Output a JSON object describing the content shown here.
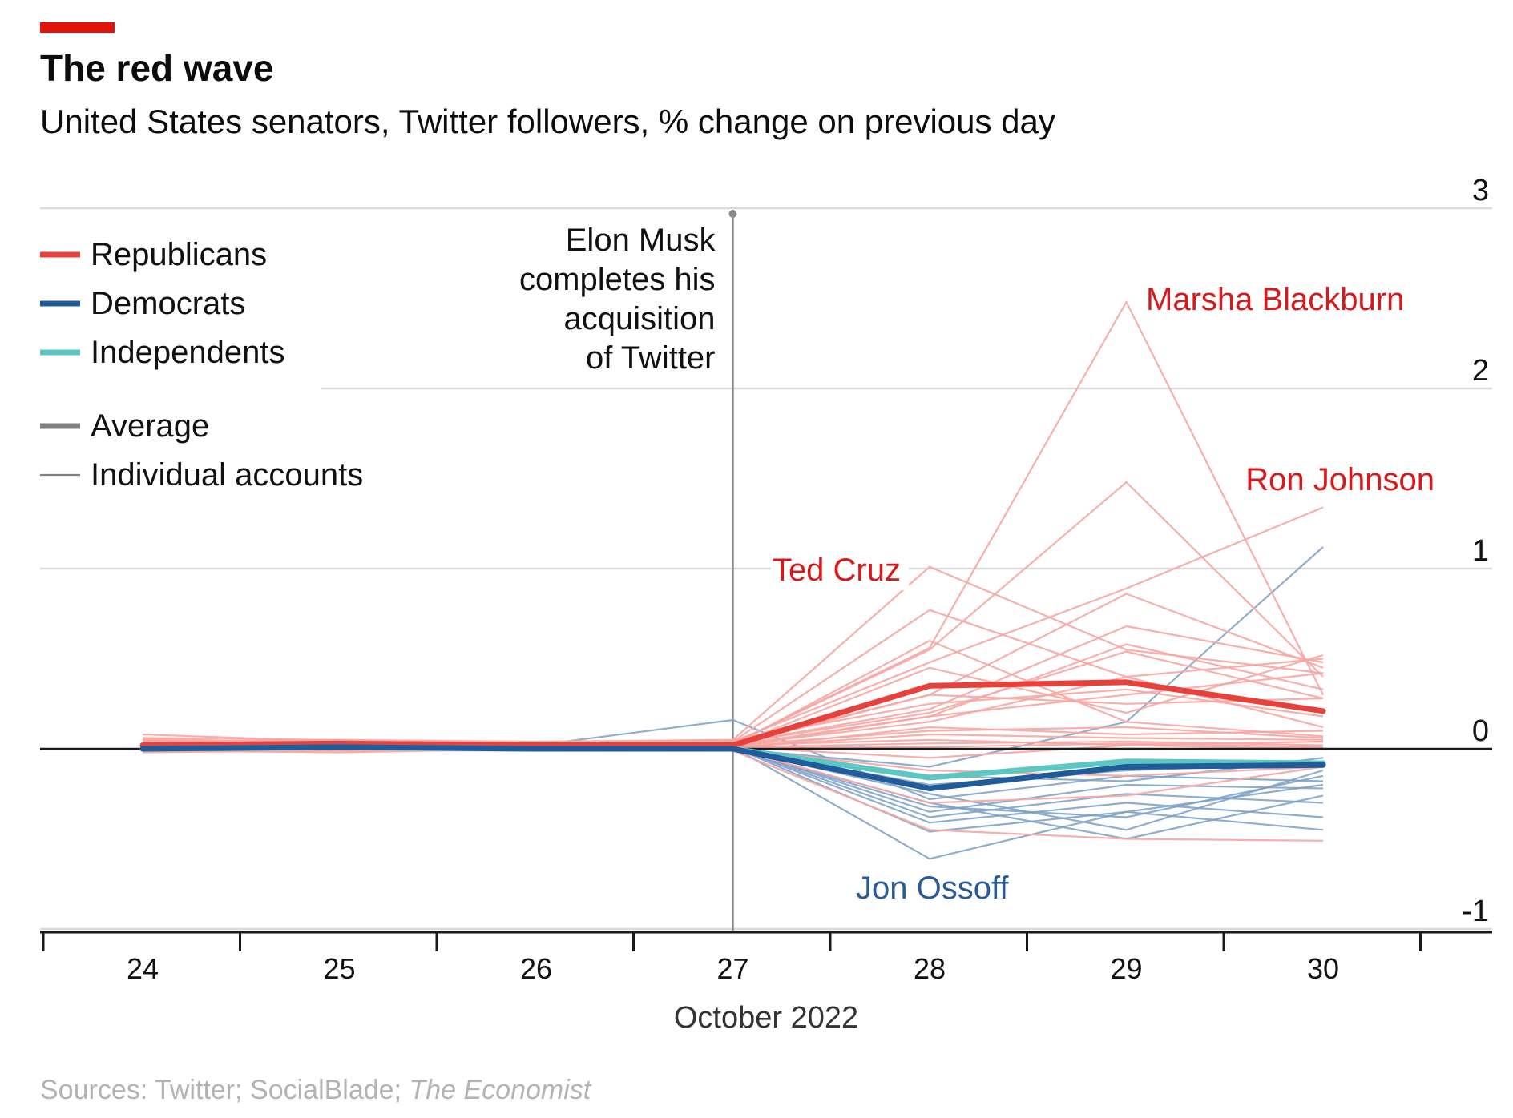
{
  "header": {
    "title": "The red wave",
    "subtitle": "United States senators, Twitter followers, % change on previous day"
  },
  "footer": {
    "sources_label": "Sources: Twitter; SocialBlade;",
    "sources_publication": "The Economist"
  },
  "colors": {
    "accent": "#e3120b",
    "republicans": "#e8413b",
    "republicans_light": "#f7a6a3",
    "democrats": "#1f5c99",
    "democrats_light": "#7b9fc7",
    "independents": "#5cc6c3",
    "average": "#808080",
    "label_red": "#d7191c",
    "label_blue": "#2a5b92"
  },
  "chart_data": {
    "type": "line",
    "title": "The red wave",
    "subtitle": "United States senators, Twitter followers, % change on previous day",
    "x": [
      24,
      25,
      26,
      27,
      28,
      29,
      30
    ],
    "x_tick_labels": [
      "24",
      "25",
      "26",
      "27",
      "28",
      "29",
      "30"
    ],
    "xlabel": "October 2022",
    "y_ticks": [
      3,
      2,
      1,
      0,
      -1
    ],
    "y_tick_labels": [
      "3",
      "2",
      "1",
      "0",
      "-1"
    ],
    "ylim": [
      -1,
      3
    ],
    "grid": true,
    "legend": {
      "placement": "top-left",
      "entries": [
        {
          "label": "Republicans",
          "color": "#e8413b",
          "style": "thick"
        },
        {
          "label": "Democrats",
          "color": "#1f5c99",
          "style": "thick"
        },
        {
          "label": "Independents",
          "color": "#5cc6c3",
          "style": "thick"
        },
        {
          "label": "Average",
          "color": "#808080",
          "style": "thick"
        },
        {
          "label": "Individual accounts",
          "color": "#808080",
          "style": "thin"
        }
      ]
    },
    "event": {
      "x": 27,
      "label_lines": [
        "Elon Musk",
        "completes his",
        "acquisition",
        "of Twitter"
      ]
    },
    "averages": [
      {
        "name": "Republicans",
        "color": "#e8413b",
        "values": [
          0.02,
          0.03,
          0.02,
          0.02,
          0.35,
          0.37,
          0.21
        ]
      },
      {
        "name": "Independents",
        "color": "#5cc6c3",
        "values": [
          0.0,
          0.01,
          0.0,
          0.0,
          -0.16,
          -0.07,
          -0.08
        ]
      },
      {
        "name": "Democrats",
        "color": "#1f5c99",
        "values": [
          0.0,
          0.01,
          0.0,
          0.0,
          -0.22,
          -0.1,
          -0.09
        ]
      }
    ],
    "individual_accounts": [
      {
        "party": "Republicans",
        "label": "Marsha Blackburn",
        "values": [
          0.05,
          0.03,
          0.02,
          0.03,
          0.56,
          2.48,
          0.3
        ]
      },
      {
        "party": "Republicans",
        "label": "Ron Johnson",
        "values": [
          0.04,
          0.04,
          0.03,
          0.04,
          0.48,
          0.89,
          1.34
        ]
      },
      {
        "party": "Republicans",
        "label": "Ted Cruz",
        "values": [
          0.06,
          0.05,
          0.04,
          0.05,
          1.01,
          0.55,
          0.42
        ]
      },
      {
        "party": "Democrats",
        "label": "Jon Ossoff",
        "values": [
          0.01,
          0.0,
          0.0,
          0.01,
          -0.61,
          -0.35,
          -0.45
        ]
      },
      {
        "party": "Republicans",
        "values": [
          0.08,
          0.04,
          0.03,
          0.04,
          0.77,
          0.4,
          0.5
        ]
      },
      {
        "party": "Republicans",
        "values": [
          0.04,
          0.05,
          0.03,
          0.03,
          0.55,
          1.48,
          0.4
        ]
      },
      {
        "party": "Republicans",
        "values": [
          0.03,
          0.02,
          0.03,
          0.02,
          0.3,
          0.86,
          0.45
        ]
      },
      {
        "party": "Republicans",
        "values": [
          0.02,
          0.03,
          0.02,
          0.03,
          0.22,
          0.68,
          0.48
        ]
      },
      {
        "party": "Republicans",
        "values": [
          0.03,
          0.02,
          0.02,
          0.02,
          0.45,
          0.2,
          0.52
        ]
      },
      {
        "party": "Republicans",
        "values": [
          0.02,
          0.02,
          0.01,
          0.02,
          0.6,
          0.15,
          0.07
        ]
      },
      {
        "party": "Republicans",
        "values": [
          0.05,
          0.03,
          0.02,
          0.03,
          0.2,
          0.54,
          0.28
        ]
      },
      {
        "party": "Republicans",
        "values": [
          0.01,
          0.02,
          0.02,
          0.01,
          0.18,
          0.3,
          0.42
        ]
      },
      {
        "party": "Republicans",
        "values": [
          0.02,
          0.01,
          0.01,
          0.02,
          0.15,
          0.4,
          0.12
        ]
      },
      {
        "party": "Republicans",
        "values": [
          0.03,
          0.03,
          0.02,
          0.03,
          0.3,
          0.25,
          0.28
        ]
      },
      {
        "party": "Republicans",
        "values": [
          0.04,
          0.02,
          0.02,
          0.02,
          0.1,
          0.12,
          0.06
        ]
      },
      {
        "party": "Republicans",
        "values": [
          0.01,
          0.01,
          0.01,
          0.01,
          0.08,
          0.06,
          0.05
        ]
      },
      {
        "party": "Republicans",
        "values": [
          0.02,
          0.02,
          0.02,
          0.02,
          0.05,
          0.02,
          0.04
        ]
      },
      {
        "party": "Republicans",
        "values": [
          0.01,
          0.02,
          0.01,
          0.01,
          0.03,
          0.04,
          0.02
        ]
      },
      {
        "party": "Republicans",
        "values": [
          0.02,
          0.01,
          0.02,
          0.01,
          0.01,
          0.03,
          0.01
        ]
      },
      {
        "party": "Republicans",
        "values": [
          0.0,
          0.01,
          0.01,
          0.0,
          0.12,
          0.08,
          0.1
        ]
      },
      {
        "party": "Republicans",
        "values": [
          0.01,
          0.0,
          0.01,
          0.01,
          -0.05,
          0.02,
          0.0
        ]
      },
      {
        "party": "Republicans",
        "values": [
          -0.01,
          -0.02,
          0.0,
          0.0,
          -0.12,
          -0.15,
          -0.1
        ]
      },
      {
        "party": "Republicans",
        "values": [
          -0.02,
          -0.01,
          -0.01,
          0.0,
          -0.3,
          -0.26,
          -0.1
        ]
      },
      {
        "party": "Republicans",
        "values": [
          0.0,
          -0.01,
          0.0,
          -0.01,
          -0.45,
          -0.5,
          -0.51
        ]
      },
      {
        "party": "Republicans",
        "values": [
          0.06,
          0.02,
          0.02,
          0.02,
          0.18,
          0.58,
          0.33
        ]
      },
      {
        "party": "Republicans",
        "values": [
          0.03,
          0.04,
          0.03,
          0.05,
          0.25,
          0.33,
          0.18
        ]
      },
      {
        "party": "Democrats",
        "values": [
          0.0,
          0.01,
          0.0,
          0.0,
          -0.1,
          0.15,
          1.12
        ]
      },
      {
        "party": "Democrats",
        "values": [
          0.01,
          0.0,
          0.02,
          0.16,
          -0.28,
          -0.15,
          -0.18
        ]
      },
      {
        "party": "Democrats",
        "values": [
          0.0,
          0.02,
          0.01,
          0.01,
          -0.35,
          -0.2,
          -0.22
        ]
      },
      {
        "party": "Democrats",
        "values": [
          0.01,
          0.01,
          0.0,
          0.0,
          -0.32,
          -0.38,
          -0.15
        ]
      },
      {
        "party": "Democrats",
        "values": [
          0.0,
          0.0,
          0.01,
          0.01,
          -0.41,
          -0.3,
          -0.38
        ]
      },
      {
        "party": "Democrats",
        "values": [
          -0.01,
          0.0,
          0.0,
          0.0,
          -0.25,
          -0.45,
          -0.12
        ]
      },
      {
        "party": "Democrats",
        "values": [
          0.01,
          0.01,
          0.01,
          0.01,
          -0.46,
          -0.35,
          -0.2
        ]
      },
      {
        "party": "Democrats",
        "values": [
          0.0,
          0.0,
          0.0,
          0.0,
          -0.2,
          -0.12,
          -0.08
        ]
      },
      {
        "party": "Democrats",
        "values": [
          0.02,
          0.0,
          0.01,
          0.0,
          -0.3,
          -0.5,
          -0.26
        ]
      },
      {
        "party": "Democrats",
        "values": [
          0.0,
          0.01,
          0.0,
          0.01,
          -0.38,
          -0.25,
          -0.3
        ]
      },
      {
        "party": "Democrats",
        "values": [
          0.01,
          0.0,
          0.0,
          0.0,
          -0.15,
          -0.18,
          -0.05
        ]
      }
    ],
    "annotations": [
      {
        "text": "Marsha Blackburn",
        "party": "Republicans"
      },
      {
        "text": "Ron Johnson",
        "party": "Republicans"
      },
      {
        "text": "Ted Cruz",
        "party": "Republicans"
      },
      {
        "text": "Jon Ossoff",
        "party": "Democrats"
      }
    ]
  }
}
